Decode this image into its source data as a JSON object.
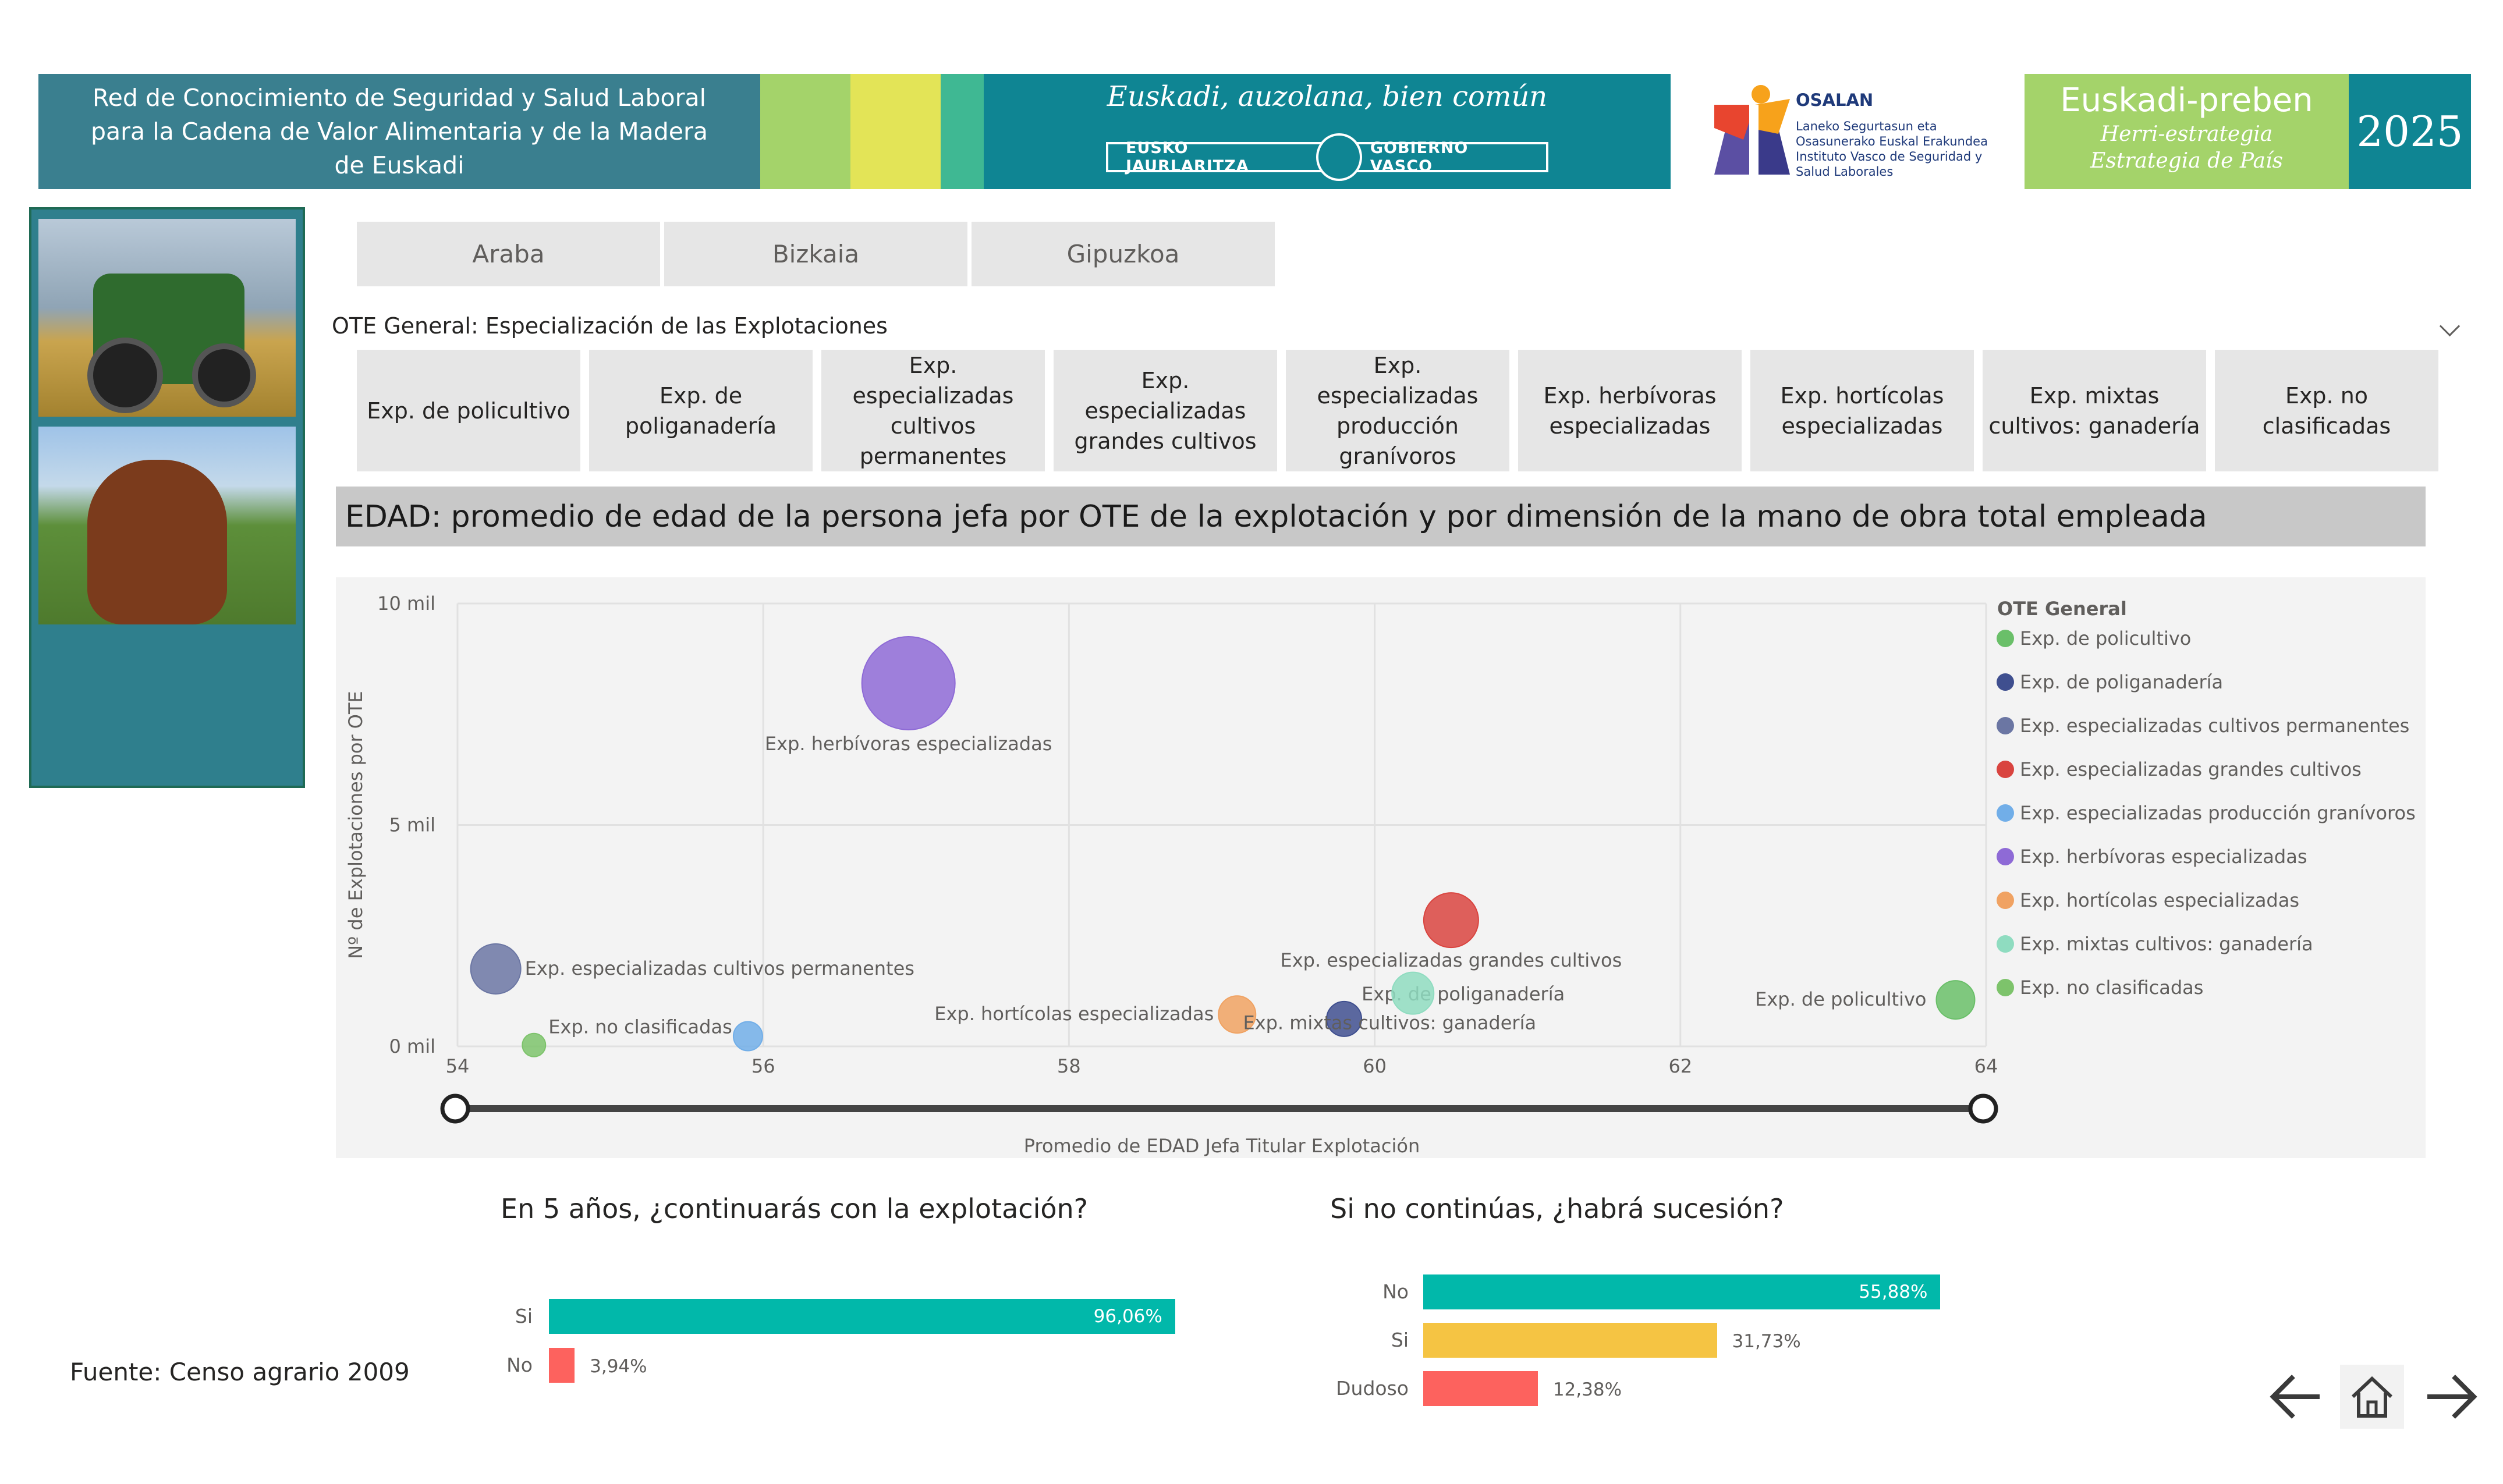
{
  "header": {
    "title": "Red de Conocimiento de Seguridad y Salud Laboral para la Cadena de Valor Alimentaria y de la Madera de Euskadi",
    "slogan": "Euskadi, auzolana, bien común",
    "gov_left": "EUSKO JAURLARITZA",
    "gov_right": "GOBIERNO VASCO",
    "osalan_name": "OSALAN",
    "osalan_sub": "Laneko Segurtasun eta Osasunerako Euskal Erakundea Instituto Vasco de Seguridad y Salud Laborales",
    "preben_title": "Euskadi-preben",
    "preben_sub1": "Herri-estrategia",
    "preben_sub2": "Estrategia de País",
    "year": "2025",
    "colors": {
      "teal": "#0f8593",
      "green": "#a4d36a",
      "yellow": "#e3e457",
      "mint": "#3fb893"
    }
  },
  "tabs": [
    "Araba",
    "Bizkaia",
    "Gipuzkoa"
  ],
  "ote_filter": {
    "title": "OTE General: Especialización de las Explotaciones",
    "items": [
      "Exp. de policultivo",
      "Exp. de poliganadería",
      "Exp. especializadas cultivos permanentes",
      "Exp. especializadas grandes cultivos",
      "Exp. especializadas producción granívoros",
      "Exp. herbívoras especializadas",
      "Exp. hortícolas especializadas",
      "Exp. mixtas cultivos: ganadería",
      "Exp. no clasificadas"
    ]
  },
  "banner": "EDAD: promedio de edad de la persona jefa por OTE de la explotación y por dimensión de la mano de obra total empleada",
  "chart_data": {
    "type": "scatter",
    "xlabel": "Promedio de EDAD Jefa Titular Explotación",
    "ylabel": "Nº de Explotaciones por OTE",
    "xlim": [
      54,
      64
    ],
    "ylim": [
      0,
      10000
    ],
    "xticks": [
      "54",
      "56",
      "58",
      "60",
      "62",
      "64"
    ],
    "yticks": [
      "0 mil",
      "5 mil",
      "10 mil"
    ],
    "legend_title": "OTE General",
    "legend_position": "right",
    "grid": true,
    "points": [
      {
        "name": "Exp. de policultivo",
        "x": 63.8,
        "y": 1050,
        "r": 33,
        "color": "#6abf69"
      },
      {
        "name": "Exp. de poliganadería",
        "x": 59.8,
        "y": 620,
        "r": 30,
        "color": "#3f4f8f"
      },
      {
        "name": "Exp. especializadas cultivos permanentes",
        "x": 54.25,
        "y": 1750,
        "r": 43,
        "color": "#6b76a3"
      },
      {
        "name": "Exp. especializadas grandes cultivos",
        "x": 60.5,
        "y": 2850,
        "r": 47,
        "color": "#d9443f"
      },
      {
        "name": "Exp. especializadas producción granívoros",
        "x": 55.9,
        "y": 230,
        "r": 25,
        "color": "#71aee8"
      },
      {
        "name": "Exp. herbívoras especializadas",
        "x": 56.95,
        "y": 8200,
        "r": 80,
        "color": "#8e6ad6"
      },
      {
        "name": "Exp. hortícolas especializadas",
        "x": 59.1,
        "y": 720,
        "r": 32,
        "color": "#f0a262"
      },
      {
        "name": "Exp. mixtas cultivos: ganadería",
        "x": 60.25,
        "y": 1200,
        "r": 36,
        "color": "#8fdcc0"
      },
      {
        "name": "Exp. no clasificadas",
        "x": 54.5,
        "y": 30,
        "r": 20,
        "color": "#7dc36b"
      }
    ]
  },
  "q1": {
    "title": "En 5 años, ¿continuarás con la explotación?",
    "categories": [
      "Si",
      "No"
    ],
    "values": [
      96.06,
      3.94
    ],
    "labels": [
      "96,06%",
      "3,94%"
    ],
    "colors": [
      "#01b8aa",
      "#fd625e"
    ]
  },
  "q2": {
    "title": "Si no continúas, ¿habrá sucesión?",
    "categories": [
      "No",
      "Si",
      "Dudoso"
    ],
    "values": [
      55.88,
      31.73,
      12.38
    ],
    "labels": [
      "55,88%",
      "31,73%",
      "12,38%"
    ],
    "colors": [
      "#01b8aa",
      "#f5c443",
      "#fd625e"
    ]
  },
  "footer": {
    "source": "Fuente: Censo agrario 2009"
  },
  "nav": {
    "prev": "arrow-left-icon",
    "home": "home-icon",
    "next": "arrow-right-icon"
  }
}
